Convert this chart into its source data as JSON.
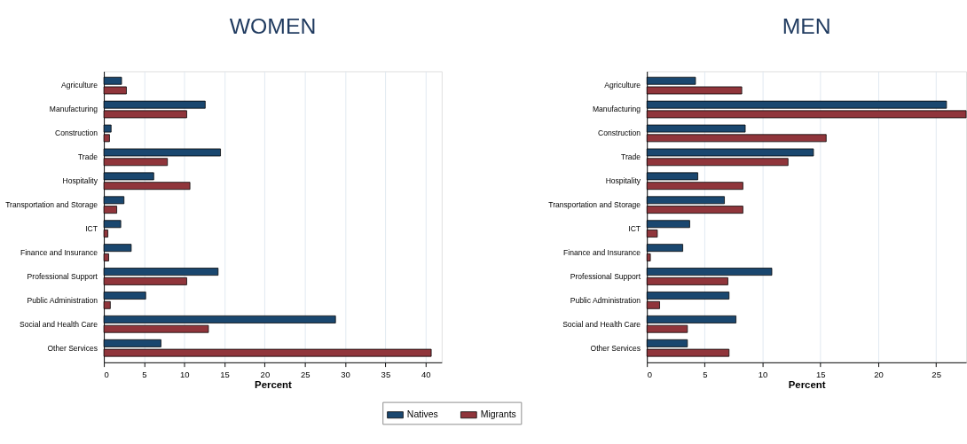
{
  "chart_data": [
    {
      "type": "bar",
      "orientation": "horizontal",
      "title": "WOMEN",
      "xlabel": "Percent",
      "categories": [
        "Agriculture",
        "Manufacturing",
        "Construction",
        "Trade",
        "Hospitality",
        "Transportation and Storage",
        "ICT",
        "Finance and Insurance",
        "Professional Support",
        "Public Administration",
        "Social and Health Care",
        "Other Services"
      ],
      "series": [
        {
          "name": "Natives",
          "color": "#1a476f",
          "values": [
            2.2,
            12.6,
            0.9,
            14.5,
            6.2,
            2.5,
            2.1,
            3.4,
            14.2,
            5.2,
            28.8,
            7.1
          ]
        },
        {
          "name": "Migrants",
          "color": "#90353b",
          "values": [
            2.8,
            10.3,
            0.7,
            7.9,
            10.7,
            1.6,
            0.5,
            0.6,
            10.3,
            0.8,
            13.0,
            40.7
          ]
        }
      ],
      "xlim": [
        0,
        42
      ],
      "xticks": [
        0,
        5,
        10,
        15,
        20,
        25,
        30,
        35,
        40
      ],
      "grid": "x",
      "legend": "bottom"
    },
    {
      "type": "bar",
      "orientation": "horizontal",
      "title": "MEN",
      "xlabel": "Percent",
      "categories": [
        "Agriculture",
        "Manufacturing",
        "Construction",
        "Trade",
        "Hospitality",
        "Transportation and Storage",
        "ICT",
        "Finance and Insurance",
        "Professional Support",
        "Public Administration",
        "Social and Health Care",
        "Other Services"
      ],
      "series": [
        {
          "color": "#1a476f",
          "values": [
            4.2,
            25.9,
            8.5,
            14.4,
            4.4,
            6.7,
            3.7,
            3.1,
            10.8,
            7.1,
            7.7,
            3.5
          ]
        },
        {
          "color": "#90353b",
          "values": [
            8.2,
            27.6,
            15.5,
            12.2,
            8.3,
            8.3,
            0.9,
            0.3,
            7.0,
            1.1,
            3.5,
            7.1
          ]
        }
      ],
      "xlim": [
        0,
        27.6
      ],
      "xticks": [
        0,
        5,
        10,
        15,
        20,
        25
      ],
      "grid": "x"
    }
  ]
}
